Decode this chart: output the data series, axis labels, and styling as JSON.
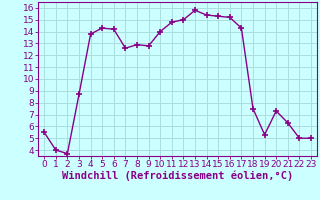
{
  "x": [
    0,
    1,
    2,
    3,
    4,
    5,
    6,
    7,
    8,
    9,
    10,
    11,
    12,
    13,
    14,
    15,
    16,
    17,
    18,
    19,
    20,
    21,
    22,
    23
  ],
  "y": [
    5.5,
    4.0,
    3.7,
    8.7,
    13.8,
    14.3,
    14.2,
    12.6,
    12.9,
    12.8,
    14.0,
    14.8,
    15.0,
    15.8,
    15.4,
    15.3,
    15.2,
    14.3,
    7.5,
    5.3,
    7.3,
    6.3,
    5.0,
    5.0
  ],
  "line_color": "#880088",
  "marker": "+",
  "marker_size": 5,
  "marker_lw": 1.2,
  "bg_color": "#ccffff",
  "grid_color": "#aadddd",
  "xlabel": "Windchill (Refroidissement éolien,°C)",
  "xlim": [
    -0.5,
    23.5
  ],
  "ylim": [
    3.5,
    16.5
  ],
  "yticks": [
    4,
    5,
    6,
    7,
    8,
    9,
    10,
    11,
    12,
    13,
    14,
    15,
    16
  ],
  "xticks": [
    0,
    1,
    2,
    3,
    4,
    5,
    6,
    7,
    8,
    9,
    10,
    11,
    12,
    13,
    14,
    15,
    16,
    17,
    18,
    19,
    20,
    21,
    22,
    23
  ],
  "tick_label_size": 6.5,
  "xlabel_size": 7.5,
  "spine_color": "#880088",
  "line_width": 1.0
}
